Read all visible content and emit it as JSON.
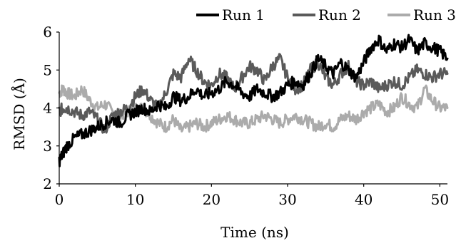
{
  "chart_data": {
    "type": "line",
    "xlabel": "Time (ns)",
    "ylabel": "RMSD (Å)",
    "xlim": [
      0,
      51
    ],
    "ylim": [
      2,
      6
    ],
    "x_ticks": [
      0,
      10,
      20,
      30,
      40,
      50
    ],
    "y_ticks": [
      2,
      3,
      4,
      5,
      6
    ],
    "legend_position": "top-right",
    "grid": false,
    "series": [
      {
        "name": "Run 1",
        "color": "#000000",
        "x": [
          0,
          0.5,
          1,
          2,
          3,
          4,
          5,
          6,
          7,
          8,
          9,
          10,
          11,
          12,
          13,
          14,
          15,
          16,
          17,
          18,
          19,
          20,
          21,
          22,
          23,
          24,
          25,
          26,
          27,
          28,
          29,
          30,
          31,
          32,
          33,
          34,
          35,
          36,
          37,
          38,
          39,
          40,
          41,
          42,
          43,
          44,
          45,
          46,
          47,
          48,
          49,
          50,
          51
        ],
        "values": [
          2.6,
          2.8,
          3.0,
          3.2,
          3.3,
          3.4,
          3.5,
          3.6,
          3.7,
          3.6,
          3.8,
          3.9,
          4.0,
          3.9,
          4.1,
          4.0,
          4.3,
          4.2,
          4.3,
          4.5,
          4.3,
          4.4,
          4.5,
          4.7,
          4.6,
          4.4,
          4.3,
          4.5,
          4.4,
          4.3,
          4.4,
          4.6,
          4.7,
          4.6,
          4.9,
          5.3,
          5.1,
          4.9,
          5.2,
          5.0,
          4.8,
          5.2,
          5.6,
          5.8,
          5.5,
          5.7,
          5.6,
          5.8,
          5.5,
          5.7,
          5.6,
          5.5,
          5.3
        ]
      },
      {
        "name": "Run 2",
        "color": "#5a5a5a",
        "x": [
          0,
          0.5,
          1,
          2,
          3,
          4,
          5,
          6,
          7,
          8,
          9,
          10,
          11,
          12,
          13,
          14,
          15,
          16,
          17,
          18,
          19,
          20,
          21,
          22,
          23,
          24,
          25,
          26,
          27,
          28,
          29,
          30,
          31,
          32,
          33,
          34,
          35,
          36,
          37,
          38,
          39,
          40,
          41,
          42,
          43,
          44,
          45,
          46,
          47,
          48,
          49,
          50,
          51
        ],
        "values": [
          3.9,
          4.0,
          4.0,
          3.9,
          3.8,
          3.9,
          3.7,
          3.4,
          3.8,
          3.9,
          4.0,
          4.3,
          4.5,
          4.2,
          4.0,
          4.4,
          4.9,
          4.8,
          5.3,
          5.0,
          4.7,
          4.6,
          4.9,
          4.8,
          4.5,
          4.8,
          5.1,
          5.0,
          4.7,
          5.1,
          5.3,
          4.8,
          4.5,
          4.6,
          5.0,
          5.2,
          4.8,
          4.6,
          4.9,
          5.1,
          4.7,
          4.6,
          4.7,
          4.5,
          4.6,
          4.7,
          4.6,
          4.8,
          5.0,
          4.9,
          4.8,
          4.9,
          4.9
        ]
      },
      {
        "name": "Run 3",
        "color": "#ababab",
        "x": [
          0,
          0.5,
          1,
          2,
          3,
          4,
          5,
          6,
          7,
          8,
          9,
          10,
          11,
          12,
          13,
          14,
          15,
          16,
          17,
          18,
          19,
          20,
          21,
          22,
          23,
          24,
          25,
          26,
          27,
          28,
          29,
          30,
          31,
          32,
          33,
          34,
          35,
          36,
          37,
          38,
          39,
          40,
          41,
          42,
          43,
          44,
          45,
          46,
          47,
          48,
          49,
          50,
          51
        ],
        "values": [
          4.4,
          4.5,
          4.4,
          4.3,
          4.5,
          4.2,
          4.0,
          4.1,
          3.9,
          3.8,
          3.9,
          4.0,
          4.0,
          3.8,
          3.6,
          3.5,
          3.7,
          3.4,
          3.5,
          3.6,
          3.5,
          3.6,
          3.7,
          3.8,
          3.7,
          3.6,
          3.6,
          3.7,
          3.8,
          3.7,
          3.6,
          3.7,
          3.8,
          3.7,
          3.6,
          3.5,
          3.6,
          3.5,
          3.7,
          3.8,
          3.7,
          3.9,
          4.0,
          4.1,
          3.9,
          4.0,
          4.3,
          4.1,
          4.0,
          4.5,
          4.2,
          4.0,
          4.0
        ]
      }
    ]
  }
}
